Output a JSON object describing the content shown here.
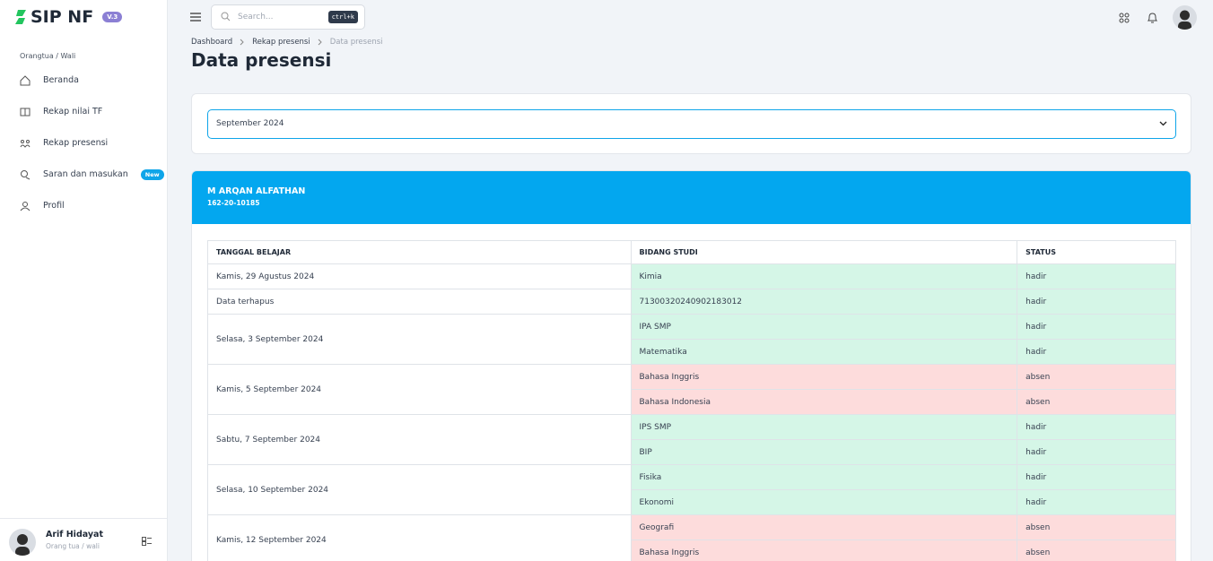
{
  "sidebar": {
    "logo": "SIP NF",
    "version": "V.3",
    "section": "Orangtua / Wali",
    "menu": [
      {
        "label": "Beranda"
      },
      {
        "label": "Rekap nilai TF"
      },
      {
        "label": "Rekap presensi"
      },
      {
        "label": "Saran dan masukan",
        "badge": "New"
      },
      {
        "label": "Profil"
      }
    ],
    "user": {
      "name": "Arif Hidayat",
      "role": "Orang tua / wali"
    }
  },
  "topbar": {
    "search_placeholder": "Search...",
    "shortcut": "ctrl+k"
  },
  "breadcrumb": [
    "Dashboard",
    "Rekap presensi",
    "Data presensi"
  ],
  "page_title": "Data presensi",
  "filter": {
    "selected": "September 2024"
  },
  "student": {
    "name": "M ARQAN ALFATHAN",
    "id": "162-20-10185"
  },
  "table": {
    "headers": [
      "TANGGAL BELAJAR",
      "BIDANG STUDI",
      "STATUS"
    ],
    "status_colors": {
      "hadir": "#d5f6e7",
      "absen": "#fddcdc"
    },
    "groups": [
      {
        "date": "Kamis, 29 Agustus 2024",
        "rows": [
          {
            "subject": "Kimia",
            "status": "hadir"
          }
        ]
      },
      {
        "date": "Data terhapus",
        "rows": [
          {
            "subject": "71300320240902183012",
            "status": "hadir"
          }
        ]
      },
      {
        "date": "Selasa, 3 September 2024",
        "rows": [
          {
            "subject": "IPA SMP",
            "status": "hadir"
          },
          {
            "subject": "Matematika",
            "status": "hadir"
          }
        ]
      },
      {
        "date": "Kamis, 5 September 2024",
        "rows": [
          {
            "subject": "Bahasa Inggris",
            "status": "absen"
          },
          {
            "subject": "Bahasa Indonesia",
            "status": "absen"
          }
        ]
      },
      {
        "date": "Sabtu, 7 September 2024",
        "rows": [
          {
            "subject": "IPS SMP",
            "status": "hadir"
          },
          {
            "subject": "BIP",
            "status": "hadir"
          }
        ]
      },
      {
        "date": "Selasa, 10 September 2024",
        "rows": [
          {
            "subject": "Fisika",
            "status": "hadir"
          },
          {
            "subject": "Ekonomi",
            "status": "hadir"
          }
        ]
      },
      {
        "date": "Kamis, 12 September 2024",
        "rows": [
          {
            "subject": "Geografi",
            "status": "absen"
          },
          {
            "subject": "Bahasa Inggris",
            "status": "absen"
          }
        ]
      }
    ]
  }
}
